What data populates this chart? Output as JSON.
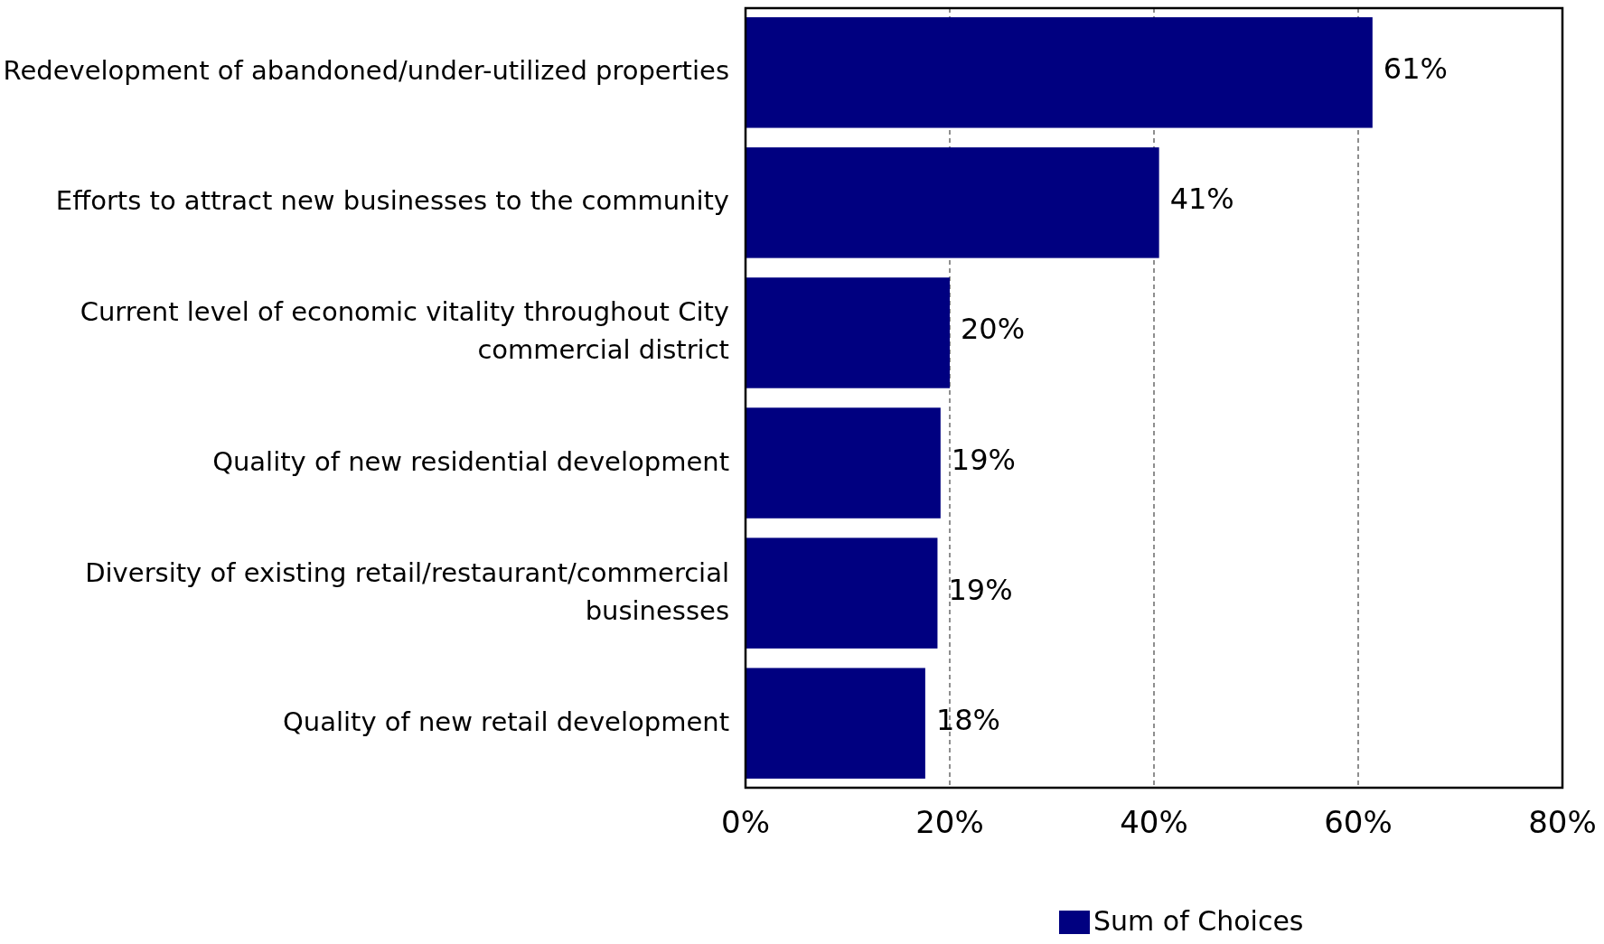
{
  "chart_data": {
    "type": "bar",
    "orientation": "horizontal",
    "categories": [
      "Redevelopment of abandoned/under-utilized properties",
      "Efforts to attract new businesses to the community",
      "Current level of economic vitality throughout City commercial district",
      "Quality of new residential development",
      "Diversity of existing retail/restaurant/commercial businesses",
      "Quality of new retail development"
    ],
    "series": [
      {
        "name": "Sum of Choices",
        "color": "#000080",
        "values": [
          61.4,
          40.5,
          20.0,
          19.1,
          18.8,
          17.6
        ],
        "value_labels": [
          "61%",
          "41%",
          "20%",
          "19%",
          "19%",
          "18%"
        ]
      }
    ],
    "xlim": [
      0,
      80
    ],
    "xticks": [
      {
        "value": 0,
        "label": "0%"
      },
      {
        "value": 20,
        "label": "20%"
      },
      {
        "value": 40,
        "label": "40%"
      },
      {
        "value": 60,
        "label": "60%"
      },
      {
        "value": 80,
        "label": "80%"
      }
    ],
    "grid": "x",
    "legend": "bottom"
  }
}
